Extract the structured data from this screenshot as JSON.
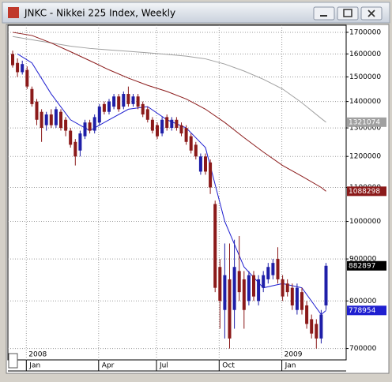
{
  "chart_data": {
    "type": "candlestick",
    "title": "JNKC - Nikkei 225 Index, Weekly",
    "categories": [
      null,
      null,
      null,
      "Jan",
      null,
      null,
      null,
      null,
      null,
      null,
      null,
      null,
      null,
      null,
      null,
      null,
      null,
      null,
      "Apr",
      null,
      null,
      null,
      null,
      null,
      null,
      null,
      null,
      null,
      null,
      null,
      "Jul",
      null,
      null,
      null,
      null,
      null,
      null,
      null,
      null,
      null,
      null,
      null,
      null,
      "Oct",
      null,
      null,
      null,
      null,
      null,
      null,
      null,
      null,
      null,
      null,
      null,
      null,
      "Jan",
      null,
      null,
      null,
      null,
      null,
      null,
      null,
      null,
      null
    ],
    "years": [
      null,
      null,
      null,
      "2008",
      null,
      null,
      null,
      null,
      null,
      null,
      null,
      null,
      null,
      null,
      null,
      null,
      null,
      null,
      null,
      null,
      null,
      null,
      null,
      null,
      null,
      null,
      null,
      null,
      null,
      null,
      null,
      null,
      null,
      null,
      null,
      null,
      null,
      null,
      null,
      null,
      null,
      null,
      null,
      null,
      null,
      null,
      null,
      null,
      null,
      null,
      null,
      null,
      null,
      null,
      null,
      null,
      "2009",
      null,
      null,
      null,
      null,
      null,
      null,
      null,
      null,
      null
    ],
    "open": [
      1600000,
      1560000,
      1520000,
      1530000,
      1450000,
      1400000,
      1360000,
      1310000,
      1350000,
      1310000,
      1360000,
      1330000,
      1290000,
      1250000,
      1220000,
      1270000,
      1320000,
      1290000,
      1320000,
      1390000,
      1360000,
      1380000,
      1420000,
      1380000,
      1430000,
      1390000,
      1420000,
      1390000,
      1370000,
      1330000,
      1310000,
      1280000,
      1340000,
      1300000,
      1330000,
      1310000,
      1300000,
      1270000,
      1240000,
      1150000,
      1200000,
      1180000,
      1050000,
      880000,
      780000,
      850000,
      780000,
      870000,
      850000,
      800000,
      860000,
      800000,
      830000,
      850000,
      860000,
      900000,
      850000,
      840000,
      830000,
      780000,
      820000,
      790000,
      760000,
      750000,
      720000,
      790000
    ],
    "high": [
      1615000,
      1580000,
      1570000,
      1545000,
      1460000,
      1410000,
      1370000,
      1360000,
      1370000,
      1380000,
      1370000,
      1340000,
      1300000,
      1260000,
      1290000,
      1330000,
      1330000,
      1350000,
      1390000,
      1400000,
      1410000,
      1430000,
      1430000,
      1440000,
      1460000,
      1430000,
      1430000,
      1400000,
      1380000,
      1340000,
      1320000,
      1340000,
      1350000,
      1340000,
      1340000,
      1320000,
      1310000,
      1280000,
      1250000,
      1210000,
      1210000,
      1190000,
      1060000,
      900000,
      940000,
      940000,
      950000,
      960000,
      870000,
      870000,
      870000,
      860000,
      870000,
      890000,
      900000,
      930000,
      860000,
      850000,
      840000,
      840000,
      830000,
      800000,
      770000,
      760000,
      780000,
      890000
    ],
    "low": [
      1540000,
      1500000,
      1510000,
      1450000,
      1380000,
      1310000,
      1250000,
      1290000,
      1300000,
      1300000,
      1290000,
      1270000,
      1230000,
      1170000,
      1200000,
      1260000,
      1280000,
      1280000,
      1310000,
      1350000,
      1350000,
      1370000,
      1360000,
      1370000,
      1380000,
      1380000,
      1370000,
      1340000,
      1320000,
      1280000,
      1260000,
      1270000,
      1290000,
      1290000,
      1290000,
      1270000,
      1240000,
      1210000,
      1190000,
      1140000,
      1140000,
      1080000,
      820000,
      740000,
      720000,
      700000,
      740000,
      800000,
      740000,
      790000,
      800000,
      790000,
      820000,
      840000,
      850000,
      840000,
      800000,
      810000,
      780000,
      770000,
      770000,
      740000,
      720000,
      700000,
      710000,
      780000
    ],
    "close": [
      1550000,
      1520000,
      1555000,
      1460000,
      1390000,
      1330000,
      1300000,
      1350000,
      1310000,
      1370000,
      1300000,
      1290000,
      1240000,
      1200000,
      1280000,
      1320000,
      1290000,
      1340000,
      1380000,
      1360000,
      1400000,
      1420000,
      1370000,
      1430000,
      1390000,
      1420000,
      1380000,
      1350000,
      1330000,
      1290000,
      1270000,
      1330000,
      1300000,
      1330000,
      1300000,
      1280000,
      1250000,
      1220000,
      1200000,
      1200000,
      1150000,
      1100000,
      830000,
      800000,
      860000,
      720000,
      880000,
      820000,
      780000,
      860000,
      810000,
      850000,
      860000,
      880000,
      890000,
      850000,
      810000,
      820000,
      790000,
      830000,
      780000,
      750000,
      730000,
      720000,
      770000,
      882897
    ],
    "up_color": "#1f1fa8",
    "down_color": "#8b1a1a",
    "price_tag_color": "#000000",
    "series": [
      {
        "color": "#a0a0a0",
        "x": [
          0,
          4,
          8,
          12,
          16,
          20,
          24,
          28,
          32,
          36,
          40,
          44,
          48,
          52,
          56,
          60,
          64,
          65
        ],
        "values": [
          1680000,
          1665000,
          1650000,
          1635000,
          1625000,
          1618000,
          1612000,
          1605000,
          1598000,
          1590000,
          1578000,
          1555000,
          1525000,
          1490000,
          1450000,
          1395000,
          1335000,
          1321074
        ]
      },
      {
        "color": "#8b1a1a",
        "x": [
          0,
          4,
          8,
          12,
          16,
          20,
          24,
          28,
          32,
          36,
          40,
          44,
          48,
          52,
          56,
          60,
          64,
          65
        ],
        "values": [
          1700000,
          1685000,
          1650000,
          1610000,
          1570000,
          1530000,
          1495000,
          1465000,
          1440000,
          1410000,
          1370000,
          1320000,
          1265000,
          1215000,
          1170000,
          1135000,
          1100000,
          1088298
        ]
      },
      {
        "color": "#1f1fd0",
        "x": [
          1,
          4,
          8,
          12,
          16,
          20,
          24,
          28,
          32,
          36,
          40,
          44,
          48,
          52,
          56,
          60,
          64,
          65
        ],
        "values": [
          1600000,
          1560000,
          1430000,
          1330000,
          1290000,
          1330000,
          1370000,
          1380000,
          1330000,
          1300000,
          1230000,
          1000000,
          880000,
          830000,
          840000,
          830000,
          770000,
          778954
        ]
      }
    ],
    "ylim": [
      678000,
      1734000
    ],
    "yticks": [
      700000,
      800000,
      900000,
      1000000,
      1100000,
      1200000,
      1300000,
      1400000,
      1500000,
      1600000,
      1700000
    ],
    "log_scale": true,
    "grid": true
  }
}
